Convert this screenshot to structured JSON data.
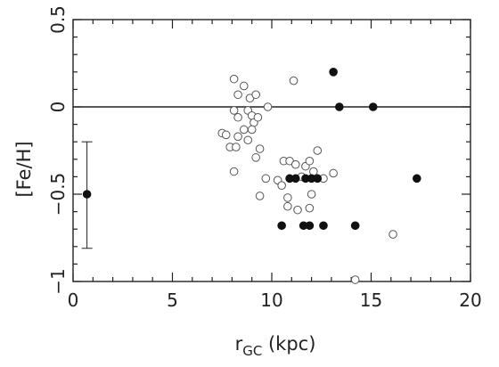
{
  "chart_data": {
    "type": "scatter",
    "title": "",
    "xlabel_main": "r",
    "xlabel_sub": "GC",
    "xlabel_unit": " (kpc)",
    "ylabel": "[Fe/H]",
    "xlim": [
      0,
      20
    ],
    "ylim": [
      -1,
      0.5
    ],
    "x_ticks": [
      0,
      5,
      10,
      15,
      20
    ],
    "x_tick_labels": [
      "0",
      "5",
      "10",
      "15",
      "20"
    ],
    "y_ticks": [
      -1,
      -0.5,
      0,
      0.5
    ],
    "y_tick_labels": [
      "−1",
      "−0.5",
      "0",
      "0.5"
    ],
    "reference_line_y": 0,
    "grid": false,
    "legend": "none",
    "series": [
      {
        "marker": "open-circle",
        "points": [
          [
            8.1,
            0.16
          ],
          [
            8.3,
            0.07
          ],
          [
            8.6,
            0.12
          ],
          [
            8.9,
            0.05
          ],
          [
            9.2,
            0.07
          ],
          [
            11.1,
            0.15
          ],
          [
            8.1,
            -0.02
          ],
          [
            8.3,
            -0.06
          ],
          [
            8.8,
            -0.02
          ],
          [
            9.0,
            -0.05
          ],
          [
            9.1,
            -0.09
          ],
          [
            9.3,
            -0.06
          ],
          [
            9.8,
            0.0
          ],
          [
            7.5,
            -0.15
          ],
          [
            7.7,
            -0.16
          ],
          [
            7.9,
            -0.23
          ],
          [
            8.2,
            -0.23
          ],
          [
            8.3,
            -0.17
          ],
          [
            8.6,
            -0.13
          ],
          [
            8.8,
            -0.19
          ],
          [
            9.0,
            -0.13
          ],
          [
            9.4,
            -0.24
          ],
          [
            9.2,
            -0.29
          ],
          [
            8.1,
            -0.37
          ],
          [
            9.7,
            -0.41
          ],
          [
            10.3,
            -0.42
          ],
          [
            10.5,
            -0.45
          ],
          [
            10.6,
            -0.31
          ],
          [
            10.9,
            -0.31
          ],
          [
            11.2,
            -0.33
          ],
          [
            11.5,
            -0.4
          ],
          [
            11.7,
            -0.34
          ],
          [
            11.9,
            -0.31
          ],
          [
            12.1,
            -0.37
          ],
          [
            12.3,
            -0.25
          ],
          [
            12.6,
            -0.41
          ],
          [
            13.1,
            -0.38
          ],
          [
            9.4,
            -0.51
          ],
          [
            10.8,
            -0.52
          ],
          [
            10.8,
            -0.57
          ],
          [
            11.3,
            -0.59
          ],
          [
            11.9,
            -0.58
          ],
          [
            12.0,
            -0.5
          ],
          [
            16.1,
            -0.73
          ],
          [
            14.2,
            -0.99
          ]
        ]
      },
      {
        "marker": "filled-circle",
        "points": [
          [
            13.1,
            0.2
          ],
          [
            13.4,
            0.0
          ],
          [
            15.1,
            0.0
          ],
          [
            10.9,
            -0.41
          ],
          [
            11.2,
            -0.41
          ],
          [
            11.7,
            -0.41
          ],
          [
            12.0,
            -0.41
          ],
          [
            12.3,
            -0.41
          ],
          [
            17.3,
            -0.41
          ],
          [
            10.5,
            -0.68
          ],
          [
            11.6,
            -0.68
          ],
          [
            11.9,
            -0.68
          ],
          [
            12.6,
            -0.68
          ],
          [
            14.2,
            -0.68
          ],
          [
            0.7,
            -0.5
          ]
        ]
      }
    ],
    "error_bar": {
      "x": 0.7,
      "y_low": -0.81,
      "y_high": -0.2
    }
  }
}
